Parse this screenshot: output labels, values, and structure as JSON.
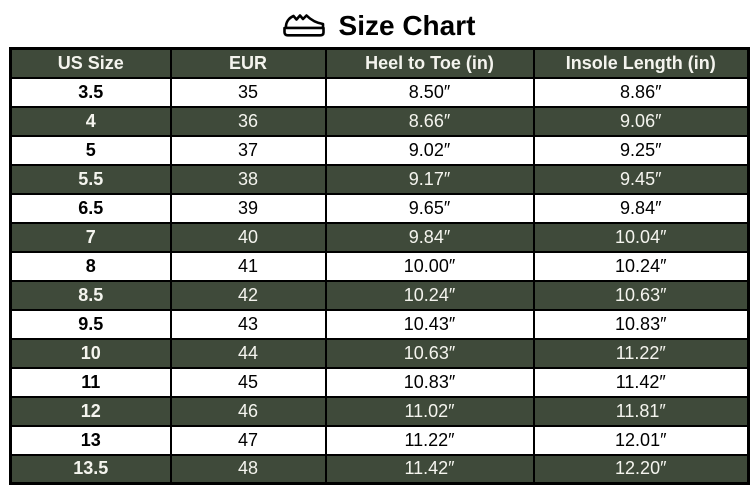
{
  "title": "Size Chart",
  "icons": {
    "title_icon": "sneaker-icon"
  },
  "colors": {
    "header_bg": "#3f4a3a",
    "alt_row_bg": "#3f4a3a",
    "row_bg": "#ffffff",
    "header_text": "#f4f4ee",
    "alt_row_text": "#f4f4ee",
    "row_text": "#000000",
    "border": "#000000",
    "title_text": "#000000"
  },
  "chart_data": {
    "type": "table",
    "title": "Size Chart",
    "columns": [
      "US Size",
      "EUR",
      "Heel to Toe (in)",
      "Insole Length (in)"
    ],
    "rows": [
      [
        "3.5",
        "35",
        "8.50″",
        "8.86″"
      ],
      [
        "4",
        "36",
        "8.66″",
        "9.06″"
      ],
      [
        "5",
        "37",
        "9.02″",
        "9.25″"
      ],
      [
        "5.5",
        "38",
        "9.17″",
        "9.45″"
      ],
      [
        "6.5",
        "39",
        "9.65″",
        "9.84″"
      ],
      [
        "7",
        "40",
        "9.84″",
        "10.04″"
      ],
      [
        "8",
        "41",
        "10.00″",
        "10.24″"
      ],
      [
        "8.5",
        "42",
        "10.24″",
        "10.63″"
      ],
      [
        "9.5",
        "43",
        "10.43″",
        "10.83″"
      ],
      [
        "10",
        "44",
        "10.63″",
        "11.22″"
      ],
      [
        "11",
        "45",
        "10.83″",
        "11.42″"
      ],
      [
        "12",
        "46",
        "11.02″",
        "11.81″"
      ],
      [
        "13",
        "47",
        "11.22″",
        "12.01″"
      ],
      [
        "13.5",
        "48",
        "11.42″",
        "12.20″"
      ]
    ]
  }
}
